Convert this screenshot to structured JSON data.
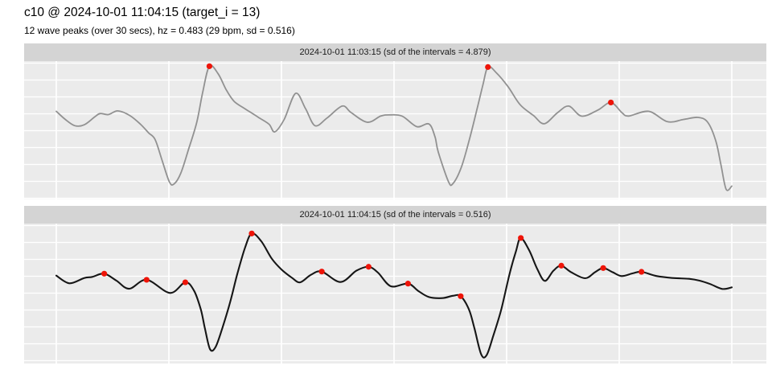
{
  "header": {
    "title": "c10 @ 2024-10-01 11:04:15 (target_i = 13)",
    "subtitle": "12 wave peaks (over 30 secs), hz = 0.483 (29 bpm, sd = 0.516)"
  },
  "colors": {
    "panel_bg": "#ebebeb",
    "strip_bg": "#d4d4d4",
    "gridline": "#ffffff",
    "line_panel1": "#919191",
    "line_panel2": "#161616",
    "peak_dot": "#ee1408"
  },
  "chart_data": [
    {
      "type": "line",
      "title": "2024-10-01 11:03:15 (sd of the intervals = 4.879)",
      "x_unit": "seconds",
      "xlim": [
        0,
        30
      ],
      "x_gridlines_sec": [
        0,
        5,
        10,
        15,
        20,
        25,
        30
      ],
      "y_scale": "normalized amplitude 0-1 (panel shows no axis labels)",
      "grid": "on",
      "points": [
        [
          0,
          0.636
        ],
        [
          0.4,
          0.577
        ],
        [
          0.82,
          0.532
        ],
        [
          1.24,
          0.538
        ],
        [
          1.71,
          0.596
        ],
        [
          1.95,
          0.62
        ],
        [
          2.31,
          0.612
        ],
        [
          2.73,
          0.639
        ],
        [
          3.26,
          0.606
        ],
        [
          3.74,
          0.542
        ],
        [
          4.1,
          0.48
        ],
        [
          4.39,
          0.431
        ],
        [
          4.69,
          0.285
        ],
        [
          5.02,
          0.125
        ],
        [
          5.23,
          0.109
        ],
        [
          5.53,
          0.187
        ],
        [
          5.88,
          0.363
        ],
        [
          6.24,
          0.557
        ],
        [
          6.5,
          0.772
        ],
        [
          6.8,
          0.963
        ],
        [
          7.19,
          0.908
        ],
        [
          7.55,
          0.791
        ],
        [
          7.9,
          0.708
        ],
        [
          8.38,
          0.655
        ],
        [
          8.98,
          0.592
        ],
        [
          9.45,
          0.542
        ],
        [
          9.7,
          0.487
        ],
        [
          10.12,
          0.577
        ],
        [
          10.63,
          0.766
        ],
        [
          11.07,
          0.655
        ],
        [
          11.49,
          0.532
        ],
        [
          12.02,
          0.587
        ],
        [
          12.7,
          0.674
        ],
        [
          13.1,
          0.626
        ],
        [
          13.81,
          0.557
        ],
        [
          14.4,
          0.601
        ],
        [
          14.76,
          0.61
        ],
        [
          15.36,
          0.601
        ],
        [
          16.01,
          0.525
        ],
        [
          16.55,
          0.544
        ],
        [
          16.82,
          0.45
        ],
        [
          16.96,
          0.343
        ],
        [
          17.42,
          0.125
        ],
        [
          17.62,
          0.113
        ],
        [
          17.98,
          0.226
        ],
        [
          18.33,
          0.421
        ],
        [
          18.69,
          0.655
        ],
        [
          18.95,
          0.83
        ],
        [
          19.17,
          0.957
        ],
        [
          19.53,
          0.918
        ],
        [
          20.06,
          0.815
        ],
        [
          20.6,
          0.684
        ],
        [
          21.19,
          0.606
        ],
        [
          21.67,
          0.546
        ],
        [
          22.26,
          0.626
        ],
        [
          22.76,
          0.674
        ],
        [
          23.33,
          0.601
        ],
        [
          24.05,
          0.645
        ],
        [
          24.63,
          0.7
        ],
        [
          25.12,
          0.626
        ],
        [
          25.42,
          0.602
        ],
        [
          26.31,
          0.636
        ],
        [
          27.14,
          0.561
        ],
        [
          27.86,
          0.577
        ],
        [
          28.49,
          0.592
        ],
        [
          28.93,
          0.557
        ],
        [
          29.29,
          0.421
        ],
        [
          29.52,
          0.246
        ],
        [
          29.75,
          0.07
        ],
        [
          30,
          0.094
        ]
      ],
      "peaks": [
        [
          6.8,
          0.963
        ],
        [
          19.17,
          0.957
        ],
        [
          24.63,
          0.7
        ]
      ]
    },
    {
      "type": "line",
      "title": "2024-10-01 11:04:15 (sd of the intervals = 0.516)",
      "x_unit": "seconds",
      "xlim": [
        0,
        30
      ],
      "x_gridlines_sec": [
        0,
        5,
        10,
        15,
        20,
        25,
        30
      ],
      "y_scale": "normalized amplitude 0-1 (panel shows no axis labels)",
      "grid": "on",
      "points": [
        [
          0,
          0.628
        ],
        [
          0.58,
          0.573
        ],
        [
          1.24,
          0.611
        ],
        [
          1.6,
          0.619
        ],
        [
          2.13,
          0.642
        ],
        [
          2.67,
          0.592
        ],
        [
          3.24,
          0.534
        ],
        [
          4.01,
          0.598
        ],
        [
          5.05,
          0.504
        ],
        [
          5.73,
          0.58
        ],
        [
          6.12,
          0.519
        ],
        [
          6.42,
          0.385
        ],
        [
          6.6,
          0.251
        ],
        [
          6.83,
          0.102
        ],
        [
          7.07,
          0.117
        ],
        [
          7.37,
          0.251
        ],
        [
          7.73,
          0.443
        ],
        [
          8.03,
          0.634
        ],
        [
          8.38,
          0.826
        ],
        [
          8.68,
          0.929
        ],
        [
          9.1,
          0.874
        ],
        [
          9.57,
          0.749
        ],
        [
          10.0,
          0.672
        ],
        [
          10.48,
          0.611
        ],
        [
          10.83,
          0.58
        ],
        [
          11.31,
          0.634
        ],
        [
          11.79,
          0.657
        ],
        [
          12.62,
          0.582
        ],
        [
          13.33,
          0.663
        ],
        [
          13.87,
          0.691
        ],
        [
          14.29,
          0.649
        ],
        [
          14.86,
          0.552
        ],
        [
          15.62,
          0.571
        ],
        [
          16.07,
          0.519
        ],
        [
          16.55,
          0.475
        ],
        [
          17.14,
          0.467
        ],
        [
          17.62,
          0.484
        ],
        [
          17.96,
          0.481
        ],
        [
          18.33,
          0.385
        ],
        [
          18.57,
          0.251
        ],
        [
          18.87,
          0.065
        ],
        [
          19.11,
          0.059
        ],
        [
          19.4,
          0.194
        ],
        [
          19.76,
          0.385
        ],
        [
          20.12,
          0.634
        ],
        [
          20.42,
          0.806
        ],
        [
          20.63,
          0.897
        ],
        [
          21.01,
          0.806
        ],
        [
          21.37,
          0.672
        ],
        [
          21.7,
          0.59
        ],
        [
          22.08,
          0.663
        ],
        [
          22.43,
          0.699
        ],
        [
          22.86,
          0.653
        ],
        [
          23.49,
          0.609
        ],
        [
          23.93,
          0.653
        ],
        [
          24.29,
          0.682
        ],
        [
          24.7,
          0.653
        ],
        [
          25.1,
          0.625
        ],
        [
          25.6,
          0.644
        ],
        [
          25.99,
          0.655
        ],
        [
          26.67,
          0.625
        ],
        [
          27.38,
          0.611
        ],
        [
          28.1,
          0.605
        ],
        [
          28.57,
          0.592
        ],
        [
          29.05,
          0.567
        ],
        [
          29.58,
          0.533
        ],
        [
          30,
          0.544
        ]
      ],
      "peaks": [
        [
          2.13,
          0.642
        ],
        [
          4.01,
          0.598
        ],
        [
          5.73,
          0.58
        ],
        [
          8.68,
          0.929
        ],
        [
          11.79,
          0.657
        ],
        [
          13.87,
          0.691
        ],
        [
          15.62,
          0.571
        ],
        [
          17.96,
          0.481
        ],
        [
          20.63,
          0.897
        ],
        [
          22.43,
          0.699
        ],
        [
          24.29,
          0.682
        ],
        [
          25.99,
          0.655
        ]
      ]
    }
  ]
}
